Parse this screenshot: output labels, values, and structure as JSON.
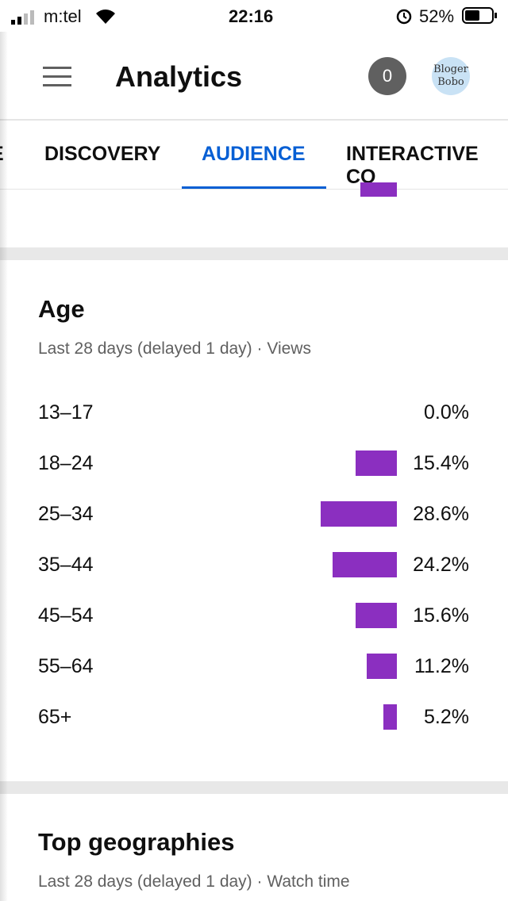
{
  "status_bar": {
    "carrier": "m:tel",
    "time": "22:16",
    "battery": "52%"
  },
  "header": {
    "title": "Analytics",
    "notifications": "0",
    "avatar": "Bloger Bobo"
  },
  "tabs": [
    "E",
    "DISCOVERY",
    "AUDIENCE",
    "INTERACTIVE CO"
  ],
  "active_tab": 2,
  "age": {
    "title": "Age",
    "subtitle": "Last 28 days (delayed 1 day) · Views",
    "chart_data": {
      "type": "bar",
      "color": "#8b2fc0",
      "categories": [
        "13–17",
        "18–24",
        "25–34",
        "35–44",
        "45–54",
        "55–64",
        "65+"
      ],
      "values": [
        0.0,
        15.4,
        28.6,
        24.2,
        15.6,
        11.2,
        5.2
      ],
      "value_labels": [
        "0.0%",
        "15.4%",
        "28.6%",
        "24.2%",
        "15.6%",
        "11.2%",
        "5.2%"
      ]
    }
  },
  "geographies": {
    "title": "Top geographies",
    "subtitle": "Last 28 days (delayed 1 day) · Watch time"
  }
}
